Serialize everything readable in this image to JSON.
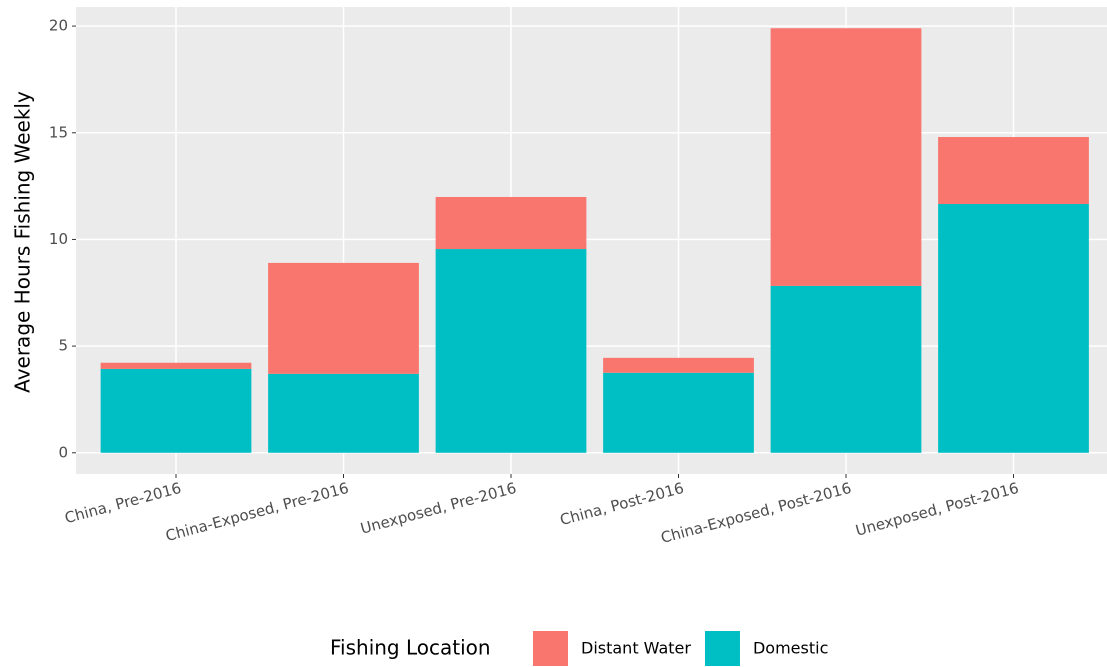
{
  "chart_data": {
    "type": "bar",
    "stacked": true,
    "y_label": "Average Hours Fishing Weekly",
    "legend_title": "Fishing Location",
    "legend_position": "bottom",
    "grid": true,
    "categories": [
      "China, Pre-2016",
      "China-Exposed, Pre-2016",
      "Unexposed, Pre-2016",
      "China, Post-2016",
      "China-Exposed, Post-2016",
      "Unexposed, Post-2016"
    ],
    "series": [
      {
        "name": "Distant Water",
        "color": "#f8766d",
        "values": [
          0.29,
          5.2,
          2.44,
          0.7,
          12.08,
          3.14
        ]
      },
      {
        "name": "Domestic",
        "color": "#00bfc4",
        "values": [
          3.93,
          3.7,
          9.55,
          3.75,
          7.82,
          11.66
        ]
      }
    ],
    "ylim": [
      -0.995,
      20.895
    ],
    "yticks": [
      0,
      5,
      10,
      15,
      20
    ]
  }
}
